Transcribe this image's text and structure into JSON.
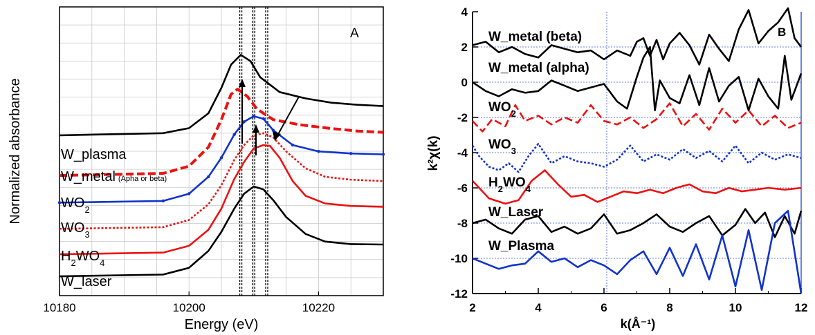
{
  "chart_data": [
    {
      "panel_label": "A",
      "type": "line",
      "xlabel": "Energy (eV)",
      "ylabel": "Normalized absorbance",
      "xlim": [
        10180,
        10230
      ],
      "x_ticks": [
        "10180",
        "10200",
        "10220"
      ],
      "x_tick_values": [
        10180,
        10200,
        10220
      ],
      "grid": true,
      "vertical_markers": [
        10208,
        10210,
        10212
      ],
      "series": [
        {
          "name": "W_plasma",
          "color": "#000000",
          "dash": "solid",
          "x": [
            10180,
            10196,
            10200,
            10203,
            10205,
            10206.5,
            10208,
            10209.5,
            10211,
            10214,
            10218,
            10222,
            10226,
            10230
          ],
          "y": [
            3.33,
            3.38,
            3.5,
            3.85,
            4.45,
            5.0,
            5.23,
            5.08,
            4.7,
            4.35,
            4.2,
            4.1,
            4.05,
            4.02
          ]
        },
        {
          "name": "W_metal",
          "name_suffix": "(Apha or beta)",
          "color": "#ee1111",
          "dash": "dashed",
          "x": [
            10180,
            10196,
            10200,
            10203,
            10205,
            10206.5,
            10207.5,
            10209,
            10210.5,
            10213,
            10217,
            10222,
            10226,
            10230
          ],
          "y": [
            2.38,
            2.43,
            2.6,
            3.05,
            3.7,
            4.3,
            4.42,
            4.25,
            3.95,
            3.7,
            3.58,
            3.49,
            3.43,
            3.4
          ]
        },
        {
          "name": "WO2",
          "color": "#1133cc",
          "dash": "solid-dots",
          "x": [
            10180,
            10196,
            10200,
            10203,
            10205,
            10207,
            10208.5,
            10210,
            10211.5,
            10213,
            10216,
            10220,
            10225,
            10230
          ],
          "y": [
            1.74,
            1.78,
            1.95,
            2.35,
            2.8,
            3.35,
            3.65,
            3.78,
            3.72,
            3.45,
            3.1,
            2.95,
            2.9,
            2.88
          ]
        },
        {
          "name": "WO3",
          "color": "#ee1111",
          "dash": "dotted",
          "x": [
            10180,
            10196,
            10200,
            10203,
            10205,
            10207,
            10208.5,
            10210,
            10211.5,
            10213,
            10215,
            10218,
            10221,
            10225,
            10230
          ],
          "y": [
            1.12,
            1.16,
            1.33,
            1.7,
            2.15,
            2.75,
            3.1,
            3.33,
            3.38,
            3.28,
            2.95,
            2.55,
            2.35,
            2.28,
            2.25
          ]
        },
        {
          "name": "H2WO4",
          "color": "#ee1111",
          "dash": "solid",
          "x": [
            10180,
            10196,
            10200,
            10203,
            10205,
            10207,
            10208.5,
            10210,
            10211.5,
            10212.5,
            10214,
            10216,
            10218,
            10221,
            10225,
            10230
          ],
          "y": [
            0.52,
            0.56,
            0.72,
            1.1,
            1.6,
            2.3,
            2.7,
            3.02,
            3.1,
            3.08,
            2.8,
            2.25,
            1.9,
            1.72,
            1.66,
            1.64
          ]
        },
        {
          "name": "W_laser",
          "color": "#000000",
          "dash": "solid",
          "x": [
            10180,
            10196,
            10200,
            10203,
            10205,
            10207,
            10208.5,
            10210,
            10211.5,
            10213,
            10215,
            10218,
            10221,
            10225,
            10230
          ],
          "y": [
            0.0,
            0.04,
            0.2,
            0.6,
            1.05,
            1.6,
            1.95,
            2.12,
            2.05,
            1.8,
            1.4,
            1.0,
            0.82,
            0.76,
            0.75
          ]
        }
      ],
      "series_labels": [
        {
          "text": "W_plasma"
        },
        {
          "text": "W_metal",
          "small": "(Apha or beta)"
        },
        {
          "text": "WO",
          "sub": "2"
        },
        {
          "text": "WO",
          "sub": "3"
        },
        {
          "text": "H",
          "sub": "2",
          "text2": "WO",
          "sub2": "4"
        },
        {
          "text": "W_laser"
        }
      ]
    },
    {
      "panel_label": "B",
      "type": "line",
      "xlabel": "k(Å⁻¹)",
      "ylabel": "k²χ(k)",
      "xlim": [
        2,
        12
      ],
      "ylim": [
        -12,
        4
      ],
      "x_ticks": [
        "2",
        "4",
        "6",
        "8",
        "10",
        "12"
      ],
      "y_ticks": [
        "4",
        "2",
        "0",
        "-2",
        "-4",
        "-6",
        "-8",
        "-10",
        "-12"
      ],
      "baselines": [
        2,
        0,
        -2,
        -4,
        -6,
        -8,
        -10
      ],
      "series": [
        {
          "name": "W_metal (beta)",
          "color": "#000000",
          "dash": "solid",
          "x": [
            2,
            2.4,
            2.8,
            3.2,
            3.6,
            4.0,
            4.4,
            4.8,
            5.2,
            5.6,
            6.0,
            6.4,
            6.8,
            7.0,
            7.2,
            7.4,
            7.6,
            7.8,
            8.0,
            8.3,
            8.6,
            8.9,
            9.2,
            9.5,
            9.8,
            10.1,
            10.4,
            10.7,
            11.0,
            11.3,
            11.6,
            11.8,
            12.0
          ],
          "y": [
            2.1,
            2.3,
            1.7,
            2.0,
            1.6,
            1.4,
            2.1,
            1.9,
            1.7,
            1.8,
            1.3,
            1.8,
            1.5,
            2.3,
            2.5,
            1.5,
            2.4,
            1.3,
            2.2,
            2.8,
            2.1,
            1.0,
            2.7,
            1.9,
            1.2,
            3.0,
            4.1,
            2.2,
            2.9,
            3.4,
            4.2,
            2.5,
            2.0
          ]
        },
        {
          "name": "W_metal (alpha)",
          "color": "#000000",
          "dash": "solid",
          "x": [
            2,
            2.4,
            2.8,
            3.2,
            3.6,
            4.0,
            4.4,
            4.8,
            5.2,
            5.6,
            6.0,
            6.4,
            6.7,
            7.0,
            7.2,
            7.4,
            7.55,
            7.7,
            8.0,
            8.3,
            8.6,
            8.9,
            9.2,
            9.5,
            9.8,
            10.1,
            10.4,
            10.7,
            11.0,
            11.3,
            11.5,
            11.7,
            12.0
          ],
          "y": [
            0.0,
            -0.5,
            -0.8,
            -0.4,
            -0.6,
            -0.5,
            0.1,
            -0.2,
            -0.5,
            -0.3,
            -0.1,
            -1.1,
            -1.5,
            0.3,
            1.4,
            2.0,
            -1.6,
            0.1,
            -0.9,
            -1.2,
            0.4,
            -1.3,
            0.8,
            -1.1,
            -0.2,
            0.3,
            -1.6,
            0.2,
            -0.8,
            -1.5,
            1.5,
            -1.0,
            0.5
          ]
        },
        {
          "name": "WO2",
          "color": "#ee1111",
          "dash": "dashed",
          "x": [
            2,
            2.3,
            2.6,
            3.0,
            3.3,
            3.6,
            4.0,
            4.4,
            4.8,
            5.2,
            5.6,
            6.0,
            6.4,
            6.8,
            7.2,
            7.6,
            8.0,
            8.4,
            8.8,
            9.2,
            9.6,
            10.0,
            10.4,
            10.8,
            11.2,
            11.6,
            12.0
          ],
          "y": [
            -2.2,
            -2.8,
            -2.1,
            -2.5,
            -1.3,
            -2.2,
            -1.9,
            -2.4,
            -2.0,
            -2.3,
            -1.3,
            -2.2,
            -2.4,
            -2.0,
            -2.6,
            -2.1,
            -1.2,
            -2.5,
            -1.8,
            -2.7,
            -1.5,
            -2.3,
            -1.6,
            -2.5,
            -1.9,
            -2.6,
            -2.3
          ]
        },
        {
          "name": "WO3",
          "color": "#1133cc",
          "dash": "dotted",
          "x": [
            2,
            2.2,
            2.5,
            2.8,
            3.1,
            3.4,
            3.7,
            4.0,
            4.4,
            4.8,
            5.2,
            5.6,
            6.0,
            6.4,
            6.8,
            7.2,
            7.6,
            8.0,
            8.4,
            8.8,
            9.2,
            9.6,
            10.0,
            10.4,
            10.8,
            11.2,
            11.6,
            12.0
          ],
          "y": [
            -3.6,
            -4.2,
            -4.8,
            -5.0,
            -4.6,
            -5.1,
            -4.2,
            -3.5,
            -4.6,
            -4.2,
            -4.5,
            -4.6,
            -4.8,
            -4.4,
            -3.6,
            -4.5,
            -4.1,
            -4.4,
            -3.8,
            -4.3,
            -3.9,
            -4.5,
            -3.6,
            -4.6,
            -4.0,
            -4.4,
            -4.1,
            -4.3
          ]
        },
        {
          "name": "H2WO4",
          "color": "#ee1111",
          "dash": "solid",
          "x": [
            2,
            2.5,
            3.0,
            3.4,
            3.8,
            4.2,
            4.6,
            5.0,
            5.4,
            5.8,
            6.2,
            6.6,
            7.0,
            7.4,
            7.8,
            8.2,
            8.6,
            9.0,
            9.4,
            9.8,
            10.2,
            10.6,
            11.0,
            11.5,
            12.0
          ],
          "y": [
            -5.6,
            -6.6,
            -6.9,
            -6.7,
            -5.6,
            -5.0,
            -5.8,
            -6.5,
            -6.4,
            -6.8,
            -6.5,
            -6.2,
            -6.3,
            -6.1,
            -6.3,
            -6.0,
            -5.8,
            -6.2,
            -6.3,
            -6.0,
            -6.2,
            -6.1,
            -6.0,
            -6.1,
            -6.0
          ]
        },
        {
          "name": "W_Laser",
          "color": "#000000",
          "dash": "solid",
          "x": [
            2,
            2.4,
            2.8,
            3.2,
            3.6,
            4.0,
            4.4,
            4.8,
            5.2,
            5.6,
            6.0,
            6.4,
            6.8,
            7.2,
            7.6,
            8.0,
            8.4,
            8.8,
            9.2,
            9.6,
            10.0,
            10.3,
            10.6,
            10.9,
            11.2,
            11.5,
            11.8,
            12.0
          ],
          "y": [
            -8.0,
            -7.8,
            -8.3,
            -8.6,
            -7.8,
            -7.6,
            -8.5,
            -8.2,
            -8.6,
            -8.3,
            -7.5,
            -8.6,
            -8.4,
            -8.0,
            -7.5,
            -8.2,
            -8.5,
            -8.0,
            -7.6,
            -8.7,
            -8.1,
            -7.2,
            -8.0,
            -7.4,
            -8.8,
            -7.6,
            -8.6,
            -7.3
          ]
        },
        {
          "name": "W_Plasma",
          "color": "#1133cc",
          "dash": "solid",
          "x": [
            2,
            2.4,
            2.8,
            3.2,
            3.6,
            4.0,
            4.4,
            4.8,
            5.2,
            5.6,
            6.0,
            6.4,
            6.8,
            7.2,
            7.6,
            8.0,
            8.4,
            8.8,
            9.2,
            9.6,
            10.0,
            10.4,
            10.8,
            11.2,
            11.6,
            12.0
          ],
          "y": [
            -10.0,
            -10.3,
            -10.6,
            -10.4,
            -10.3,
            -9.6,
            -10.2,
            -10.0,
            -10.5,
            -10.1,
            -10.4,
            -10.9,
            -10.1,
            -9.6,
            -10.9,
            -9.4,
            -11.0,
            -9.2,
            -11.2,
            -8.7,
            -11.6,
            -8.4,
            -11.8,
            -8.0,
            -7.3,
            -12.0
          ]
        }
      ],
      "series_labels": [
        {
          "text": "W_metal (beta)"
        },
        {
          "text": "W_metal (alpha)"
        },
        {
          "text": "WO",
          "sub": "2"
        },
        {
          "text": "WO",
          "sub": "3"
        },
        {
          "text": "H",
          "sub": "2",
          "text2": "WO",
          "sub2": "4"
        },
        {
          "text": "W_Laser"
        },
        {
          "text": "W_Plasma"
        }
      ]
    }
  ]
}
